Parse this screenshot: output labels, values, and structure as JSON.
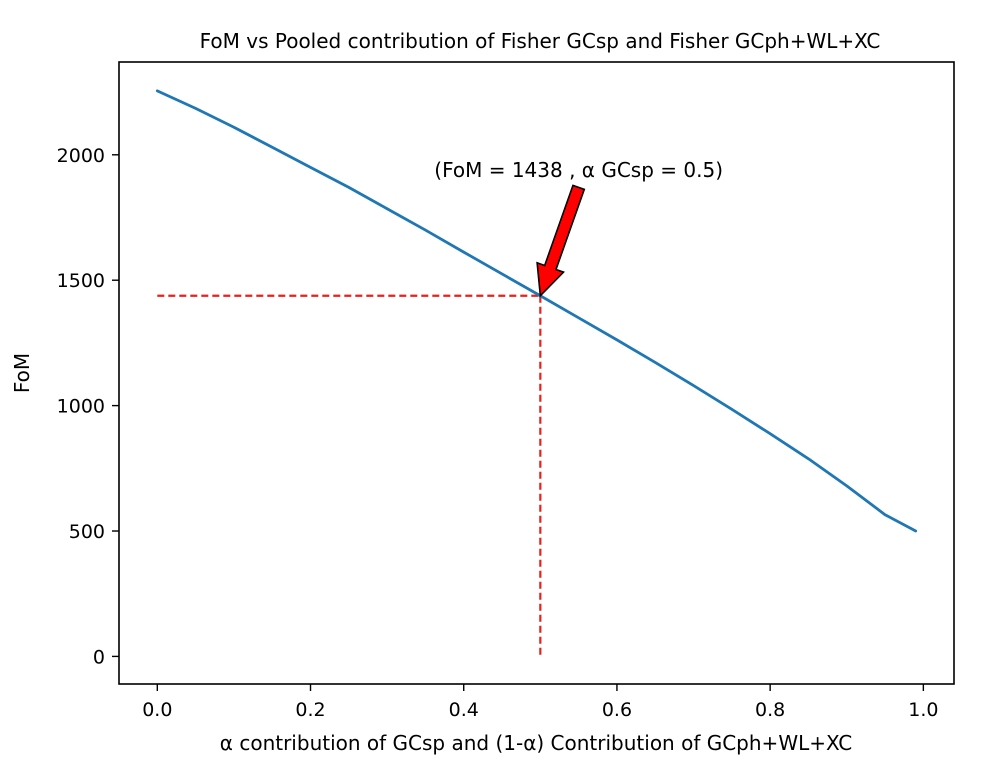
{
  "chart_data": {
    "type": "line",
    "title": "FoM vs Pooled contribution of Fisher GCsp and Fisher GCph+WL+XC",
    "xlabel": "α contribution of GCsp and (1-α) Contribution of GCph+WL+XC",
    "ylabel": "FoM",
    "xlim": [
      -0.05,
      1.04
    ],
    "ylim": [
      -110,
      2370
    ],
    "x_ticks": [
      0.0,
      0.2,
      0.4,
      0.6,
      0.8,
      1.0
    ],
    "x_tick_labels": [
      "0.0",
      "0.2",
      "0.4",
      "0.6",
      "0.8",
      "1.0"
    ],
    "y_ticks": [
      0,
      500,
      1000,
      1500,
      2000
    ],
    "y_tick_labels": [
      "0",
      "500",
      "1000",
      "1500",
      "2000"
    ],
    "grid": false,
    "series": [
      {
        "name": "FoM",
        "color": "#1f77b4",
        "x": [
          0.0,
          0.05,
          0.1,
          0.15,
          0.2,
          0.25,
          0.3,
          0.35,
          0.4,
          0.45,
          0.5,
          0.55,
          0.6,
          0.65,
          0.7,
          0.75,
          0.8,
          0.85,
          0.9,
          0.95,
          0.99
        ],
        "y": [
          2255,
          2185,
          2110,
          2030,
          1950,
          1870,
          1785,
          1700,
          1612,
          1525,
          1438,
          1350,
          1262,
          1172,
          1080,
          985,
          888,
          788,
          680,
          565,
          500
        ]
      }
    ],
    "reference_lines": {
      "color": "#e8211c",
      "point": {
        "x": 0.5,
        "y": 1438
      },
      "horizontal_from_x": 0.0,
      "vertical_to_y": 0
    },
    "annotation": {
      "text": "(FoM = 1438 , α GCsp = 0.5)",
      "point": {
        "x": 0.5,
        "y": 1438
      },
      "text_anchor": {
        "x": 0.55,
        "y": 1940
      },
      "arrow_start": {
        "x": 0.55,
        "y": 1870
      },
      "arrow_color": "#ff0000",
      "arrow_edge_color": "#000000"
    }
  }
}
